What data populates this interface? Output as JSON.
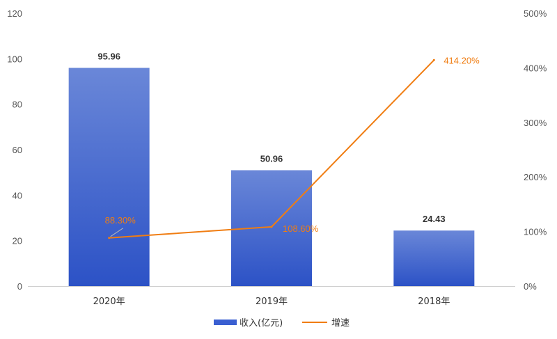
{
  "chart_data": {
    "type": "bar",
    "categories": [
      "2020年",
      "2019年",
      "2018年"
    ],
    "series": [
      {
        "name": "收入(亿元)",
        "kind": "bar",
        "axis": "left",
        "values": [
          95.96,
          50.96,
          24.43
        ],
        "labels": [
          "95.96",
          "50.96",
          "24.43"
        ],
        "color": "#3a5fd1"
      },
      {
        "name": "增速",
        "kind": "line",
        "axis": "right",
        "values": [
          88.3,
          108.6,
          414.2
        ],
        "labels": [
          "88.30%",
          "108.60%",
          "414.20%"
        ],
        "color": "#f07d12"
      }
    ],
    "left_axis": {
      "ylim": [
        0,
        120
      ],
      "ticks": [
        "0",
        "20",
        "40",
        "60",
        "80",
        "100",
        "120"
      ]
    },
    "right_axis": {
      "ylim": [
        0,
        500
      ],
      "ticks": [
        "0%",
        "100%",
        "200%",
        "300%",
        "400%",
        "500%"
      ]
    },
    "legend": {
      "position": "bottom",
      "items": [
        "收入(亿元)",
        "增速"
      ]
    },
    "grid": false
  }
}
